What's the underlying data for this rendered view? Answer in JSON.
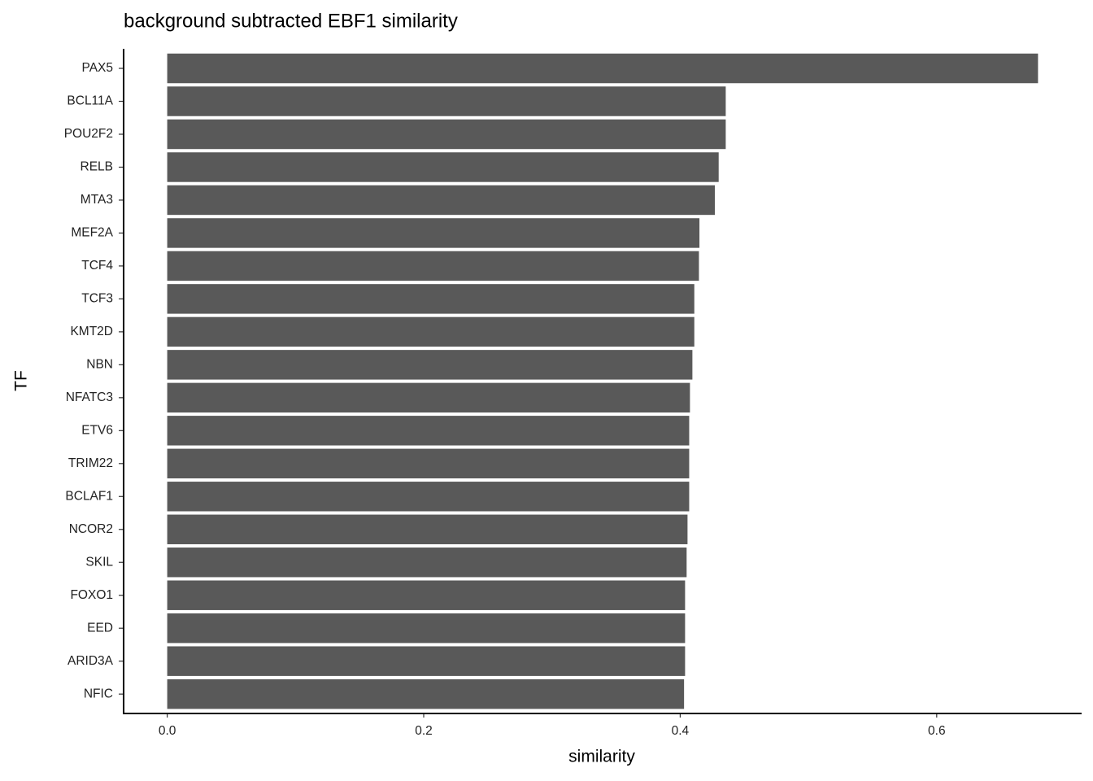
{
  "chart_data": {
    "type": "bar",
    "orientation": "horizontal",
    "title": "background subtracted EBF1 similarity",
    "x_label": "similarity",
    "y_label": "TF",
    "categories": [
      "PAX5",
      "BCL11A",
      "POU2F2",
      "RELB",
      "MTA3",
      "MEF2A",
      "TCF4",
      "TCF3",
      "KMT2D",
      "NBN",
      "NFATC3",
      "ETV6",
      "TRIM22",
      "BCLAF1",
      "NCOR2",
      "SKIL",
      "FOXO1",
      "EED",
      "ARID3A",
      "NFIC"
    ],
    "values": [
      0.679,
      0.4355,
      0.4355,
      0.43,
      0.427,
      0.415,
      0.4146,
      0.411,
      0.411,
      0.4095,
      0.4076,
      0.407,
      0.407,
      0.407,
      0.4057,
      0.405,
      0.4038,
      0.4038,
      0.4038,
      0.403
    ],
    "color": "#595959",
    "xlim": [
      -0.034,
      0.713
    ],
    "xticks": [
      {
        "value": 0,
        "label": "0.0"
      },
      0.2,
      0.4,
      0.6
    ],
    "grid": false
  }
}
